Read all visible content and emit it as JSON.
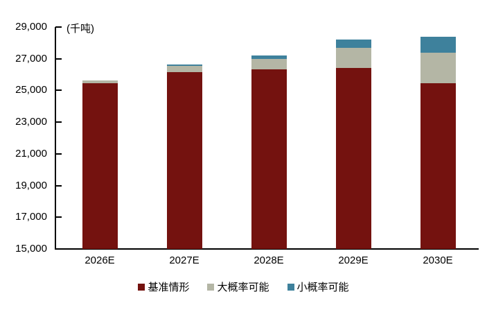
{
  "chart_data": {
    "type": "bar",
    "stacked": true,
    "title": "",
    "unit_label": "(千吨)",
    "categories": [
      "2026E",
      "2027E",
      "2028E",
      "2029E",
      "2030E"
    ],
    "series": [
      {
        "key": "base-case",
        "name": "基准情形",
        "color": "#74120F",
        "values": [
          25450,
          26150,
          26350,
          26400,
          25450
        ]
      },
      {
        "key": "high-probability",
        "name": "大概率可能",
        "color": "#B4B6A5",
        "values": [
          200,
          400,
          650,
          1300,
          1950
        ]
      },
      {
        "key": "low-probability",
        "name": "小概率可能",
        "color": "#3E819C",
        "values": [
          0,
          100,
          200,
          500,
          1000
        ]
      }
    ],
    "totals": [
      25650,
      26650,
      27200,
      28200,
      28400
    ],
    "ylim": [
      15000,
      29000
    ],
    "ytick_step": 2000,
    "yticks": [
      "29,000",
      "27,000",
      "25,000",
      "23,000",
      "21,000",
      "19,000",
      "17,000",
      "15,000"
    ],
    "xlabel": "",
    "ylabel": "(千吨)",
    "grid": false,
    "legend_position": "bottom",
    "axis_color": "#000000",
    "background_color": "#FFFFFF"
  }
}
